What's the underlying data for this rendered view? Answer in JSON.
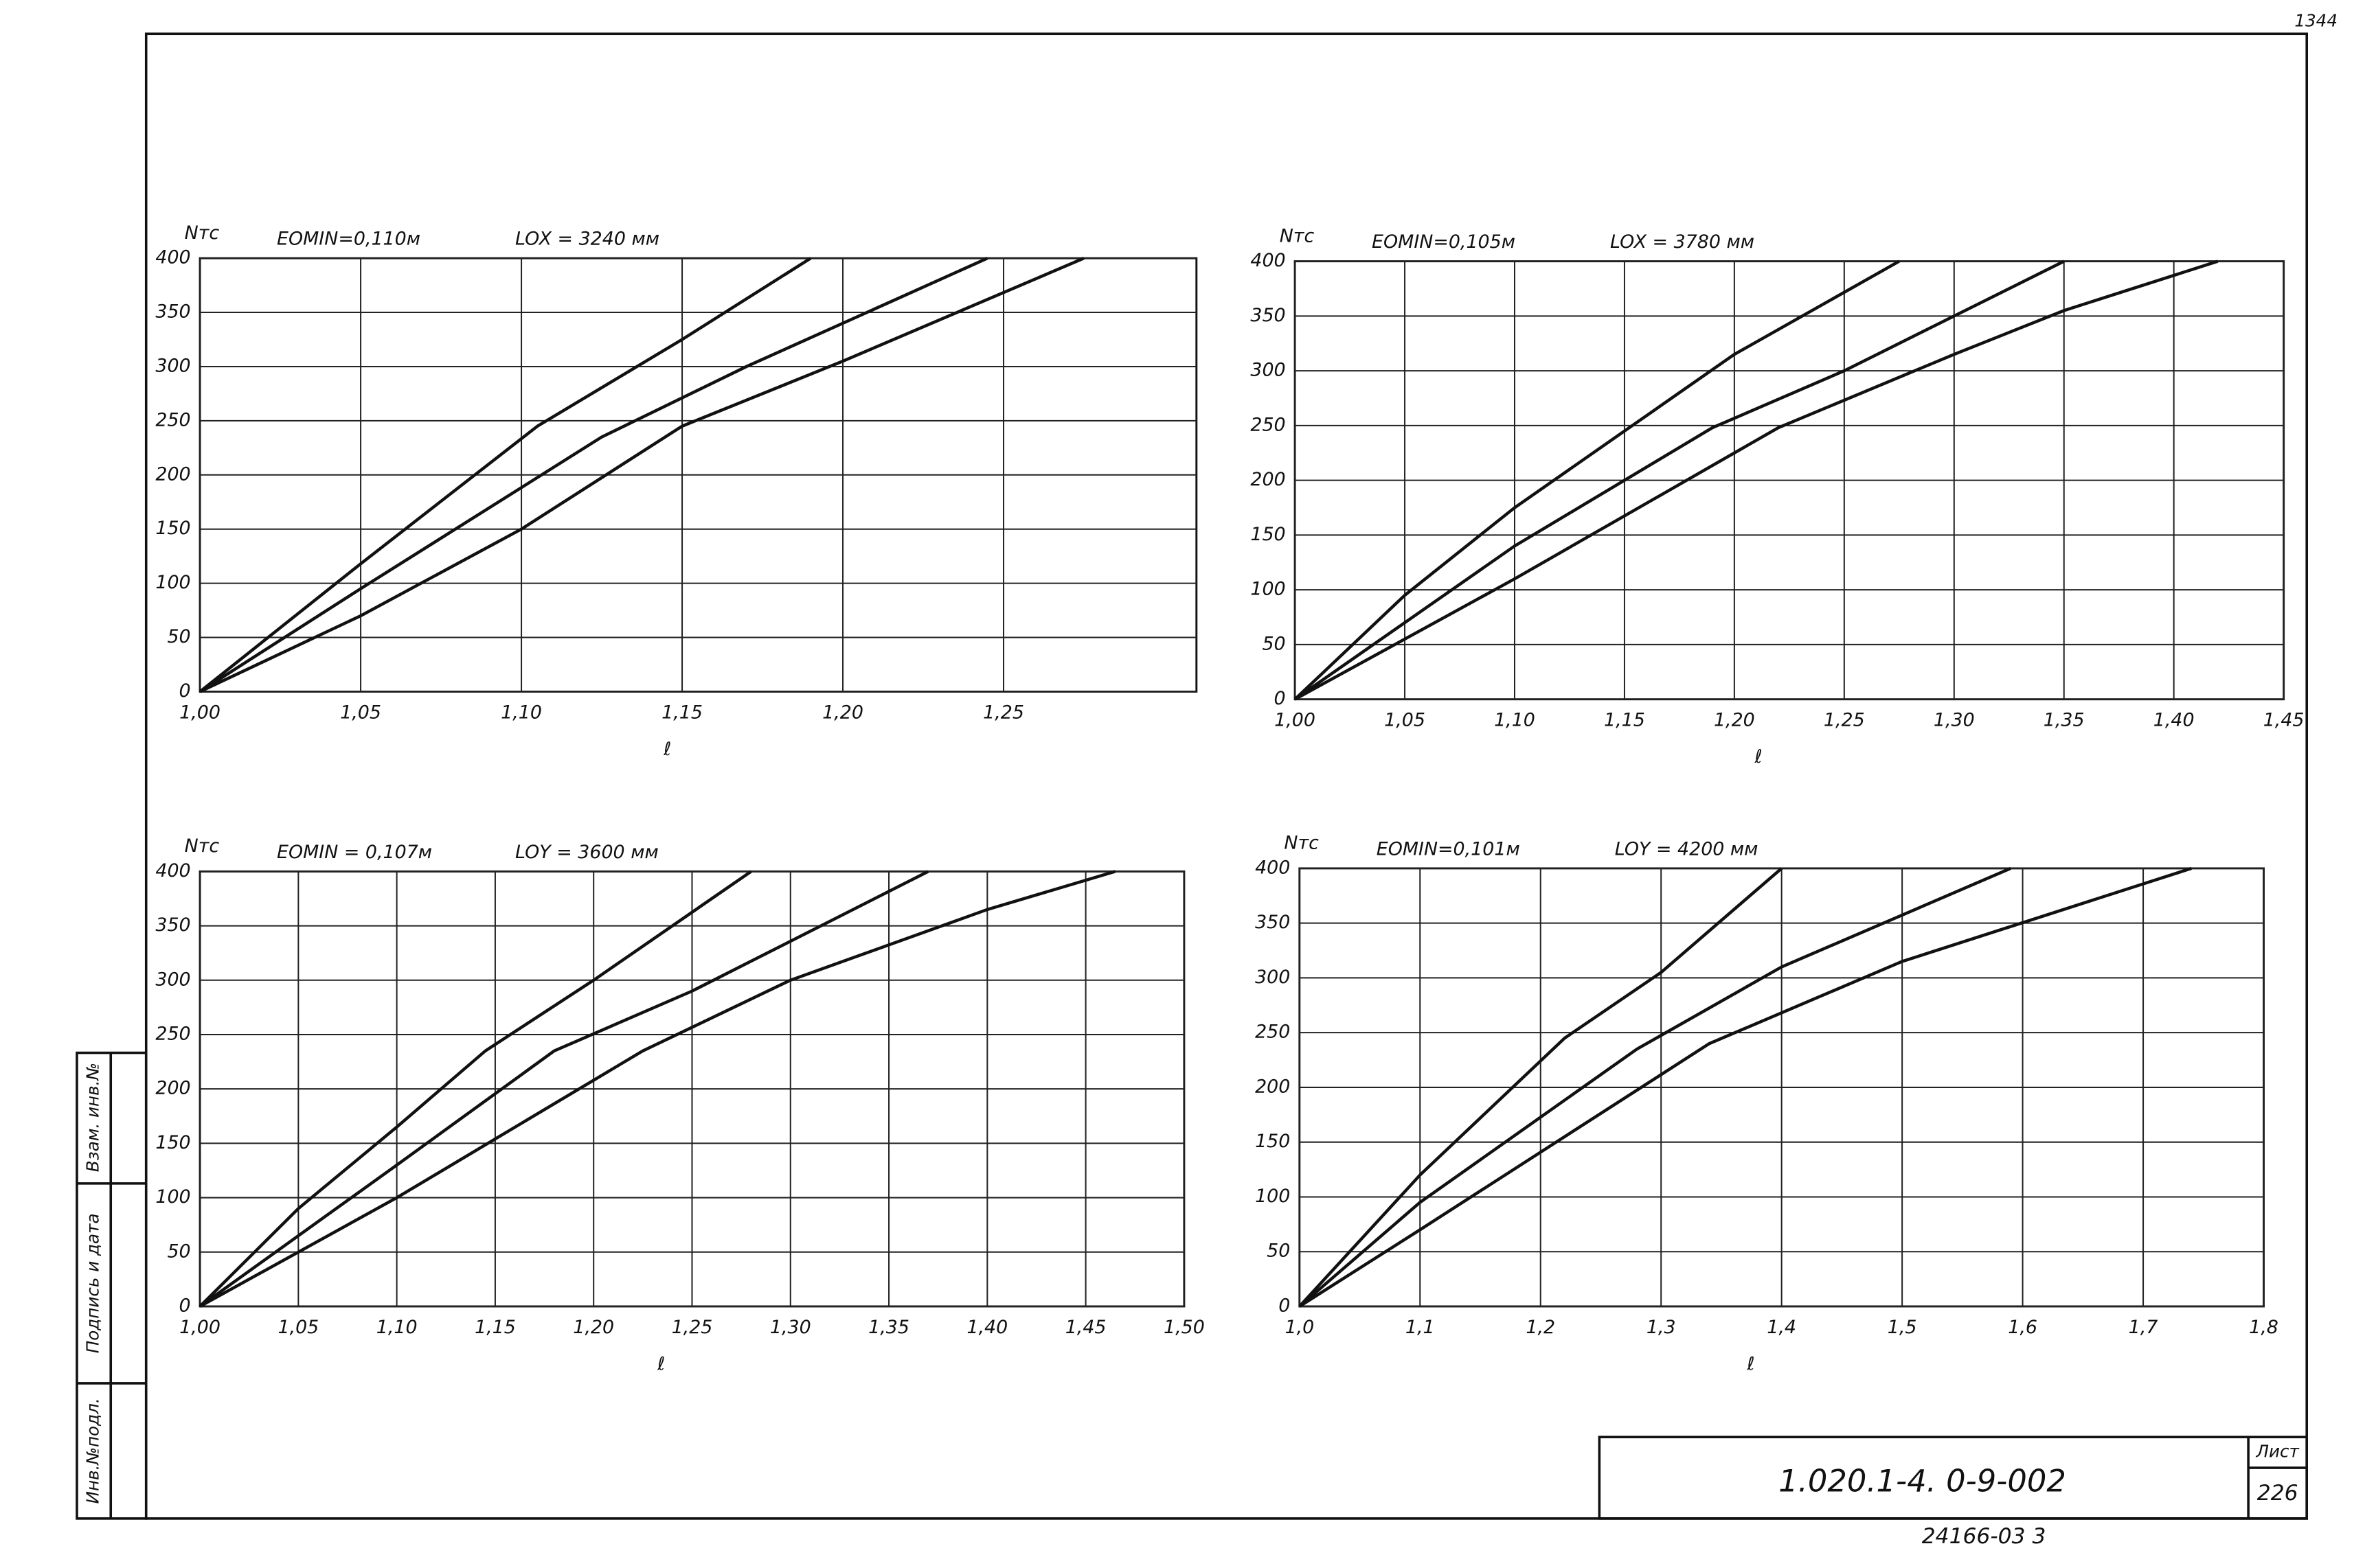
{
  "chart_data": [
    {
      "type": "line",
      "ylabel": "Nтс",
      "title": "EOMIN=0,110м",
      "subtitle": "LOX = 3240 мм",
      "xlabel": "ℓ",
      "xlim": [
        1.0,
        1.31
      ],
      "ylim": [
        0,
        400
      ],
      "grid": true,
      "xticks": [
        {
          "value": 1.0,
          "label": "1,00"
        },
        {
          "value": 1.05,
          "label": "1,05"
        },
        {
          "value": 1.1,
          "label": "1,10"
        },
        {
          "value": 1.15,
          "label": "1,15"
        },
        {
          "value": 1.2,
          "label": "1,20"
        },
        {
          "value": 1.25,
          "label": "1,25"
        }
      ],
      "yticks": [
        0,
        50,
        100,
        150,
        200,
        250,
        300,
        350,
        400
      ],
      "series": [
        {
          "color": "#111",
          "x": [
            1.0,
            1.05,
            1.105,
            1.15,
            1.19
          ],
          "values": [
            0,
            118,
            245,
            325,
            400
          ]
        },
        {
          "color": "#111",
          "x": [
            1.0,
            1.05,
            1.125,
            1.17,
            1.245
          ],
          "values": [
            0,
            95,
            235,
            300,
            400
          ]
        },
        {
          "color": "#111",
          "x": [
            1.0,
            1.05,
            1.1,
            1.15,
            1.2,
            1.275
          ],
          "values": [
            0,
            70,
            150,
            245,
            305,
            400
          ]
        }
      ]
    },
    {
      "type": "line",
      "ylabel": "Nтс",
      "title": "EOMIN=0,105м",
      "subtitle": "LOX = 3780 мм",
      "xlabel": "ℓ",
      "xlim": [
        1.0,
        1.45
      ],
      "ylim": [
        0,
        400
      ],
      "grid": true,
      "xticks": [
        {
          "value": 1.0,
          "label": "1,00"
        },
        {
          "value": 1.05,
          "label": "1,05"
        },
        {
          "value": 1.1,
          "label": "1,10"
        },
        {
          "value": 1.15,
          "label": "1,15"
        },
        {
          "value": 1.2,
          "label": "1,20"
        },
        {
          "value": 1.25,
          "label": "1,25"
        },
        {
          "value": 1.3,
          "label": "1,30"
        },
        {
          "value": 1.35,
          "label": "1,35"
        },
        {
          "value": 1.4,
          "label": "1,40"
        },
        {
          "value": 1.45,
          "label": "1,45"
        }
      ],
      "yticks": [
        0,
        50,
        100,
        150,
        200,
        250,
        300,
        350,
        400
      ],
      "series": [
        {
          "color": "#111",
          "x": [
            1.0,
            1.05,
            1.1,
            1.15,
            1.2,
            1.275
          ],
          "values": [
            0,
            95,
            175,
            245,
            315,
            400
          ]
        },
        {
          "color": "#111",
          "x": [
            1.0,
            1.1,
            1.19,
            1.25,
            1.35
          ],
          "values": [
            0,
            140,
            248,
            300,
            400
          ]
        },
        {
          "color": "#111",
          "x": [
            1.0,
            1.1,
            1.22,
            1.3,
            1.35,
            1.42
          ],
          "values": [
            0,
            110,
            248,
            315,
            355,
            400
          ]
        }
      ]
    },
    {
      "type": "line",
      "ylabel": "Nтс",
      "title": "EOMIN = 0,107м",
      "subtitle": "LOY = 3600 мм",
      "xlabel": "ℓ",
      "xlim": [
        1.0,
        1.5
      ],
      "ylim": [
        0,
        400
      ],
      "grid": true,
      "xticks": [
        {
          "value": 1.0,
          "label": "1,00"
        },
        {
          "value": 1.05,
          "label": "1,05"
        },
        {
          "value": 1.1,
          "label": "1,10"
        },
        {
          "value": 1.15,
          "label": "1,15"
        },
        {
          "value": 1.2,
          "label": "1,20"
        },
        {
          "value": 1.25,
          "label": "1,25"
        },
        {
          "value": 1.3,
          "label": "1,30"
        },
        {
          "value": 1.35,
          "label": "1,35"
        },
        {
          "value": 1.4,
          "label": "1,40"
        },
        {
          "value": 1.45,
          "label": "1,45"
        },
        {
          "value": 1.5,
          "label": "1,50"
        }
      ],
      "yticks": [
        0,
        50,
        100,
        150,
        200,
        250,
        300,
        350,
        400
      ],
      "series": [
        {
          "color": "#111",
          "x": [
            1.0,
            1.05,
            1.1,
            1.145,
            1.2,
            1.28
          ],
          "values": [
            0,
            90,
            165,
            235,
            300,
            400
          ]
        },
        {
          "color": "#111",
          "x": [
            1.0,
            1.1,
            1.18,
            1.25,
            1.37
          ],
          "values": [
            0,
            130,
            235,
            290,
            400
          ]
        },
        {
          "color": "#111",
          "x": [
            1.0,
            1.1,
            1.225,
            1.3,
            1.4,
            1.465
          ],
          "values": [
            0,
            100,
            235,
            300,
            365,
            400
          ]
        }
      ]
    },
    {
      "type": "line",
      "ylabel": "Nтс",
      "title": "EOMIN=0,101м",
      "subtitle": "LOY = 4200 мм",
      "xlabel": "ℓ",
      "xlim": [
        1.0,
        1.8
      ],
      "ylim": [
        0,
        400
      ],
      "grid": true,
      "xticks": [
        {
          "value": 1.0,
          "label": "1,0"
        },
        {
          "value": 1.1,
          "label": "1,1"
        },
        {
          "value": 1.2,
          "label": "1,2"
        },
        {
          "value": 1.3,
          "label": "1,3"
        },
        {
          "value": 1.4,
          "label": "1,4"
        },
        {
          "value": 1.5,
          "label": "1,5"
        },
        {
          "value": 1.6,
          "label": "1,6"
        },
        {
          "value": 1.7,
          "label": "1,7"
        },
        {
          "value": 1.8,
          "label": "1,8"
        }
      ],
      "yticks": [
        0,
        50,
        100,
        150,
        200,
        250,
        300,
        350,
        400
      ],
      "series": [
        {
          "color": "#111",
          "x": [
            1.0,
            1.1,
            1.22,
            1.3,
            1.4
          ],
          "values": [
            0,
            120,
            245,
            305,
            400
          ]
        },
        {
          "color": "#111",
          "x": [
            1.0,
            1.1,
            1.28,
            1.4,
            1.59
          ],
          "values": [
            0,
            95,
            235,
            310,
            400
          ]
        },
        {
          "color": "#111",
          "x": [
            1.0,
            1.1,
            1.34,
            1.5,
            1.74
          ],
          "values": [
            0,
            70,
            240,
            315,
            400
          ]
        }
      ]
    }
  ],
  "stamp": {
    "code": "1.020.1-4. 0-9-002",
    "sheet_label": "Лист",
    "sheet": "226",
    "archive": "24166-03  3",
    "corner": "1344",
    "side": [
      "Инв.№подл.",
      "Подпись и дата",
      "Взам. инв.№"
    ]
  }
}
